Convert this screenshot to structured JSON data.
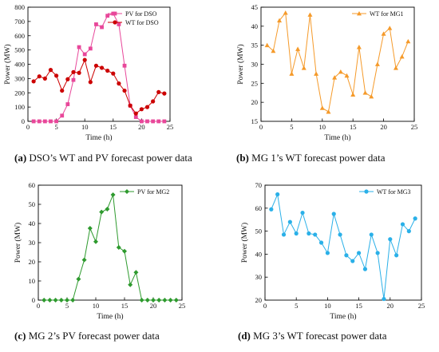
{
  "captions": [
    {
      "letter": "(a)",
      "text": " DSO’s WT and PV forecast power data"
    },
    {
      "letter": "(b)",
      "text": " MG 1’s WT forecast power data"
    },
    {
      "letter": "(c)",
      "text": " MG 2’s PV forecast power data"
    },
    {
      "letter": "(d)",
      "text": " MG 3’s WT forecast power data"
    }
  ],
  "chart_data": [
    {
      "type": "line",
      "xlabel": "Time (h)",
      "ylabel": "Power (MW)",
      "xlim": [
        0,
        25
      ],
      "ylim": [
        0,
        800
      ],
      "xticks": [
        0,
        5,
        10,
        15,
        20,
        25
      ],
      "yticks": [
        0,
        100,
        200,
        300,
        400,
        500,
        600,
        700,
        800
      ],
      "grid": false,
      "legend": "top-right",
      "series": [
        {
          "name": "PV for DSO",
          "color": "#e8479a",
          "marker": "square",
          "x": [
            1,
            2,
            3,
            4,
            5,
            6,
            7,
            8,
            9,
            10,
            11,
            12,
            13,
            14,
            15,
            16,
            17,
            18,
            19,
            20,
            21,
            22,
            23,
            24
          ],
          "values": [
            0,
            0,
            0,
            0,
            0,
            40,
            120,
            290,
            520,
            470,
            510,
            680,
            660,
            740,
            755,
            680,
            390,
            110,
            30,
            0,
            0,
            0,
            0,
            0
          ]
        },
        {
          "name": "WT for DSO",
          "color": "#cc0000",
          "marker": "circle",
          "x": [
            1,
            2,
            3,
            4,
            5,
            6,
            7,
            8,
            9,
            10,
            11,
            12,
            13,
            14,
            15,
            16,
            17,
            18,
            19,
            20,
            21,
            22,
            23,
            24
          ],
          "values": [
            280,
            315,
            300,
            360,
            320,
            215,
            295,
            345,
            340,
            430,
            275,
            390,
            375,
            355,
            335,
            265,
            215,
            110,
            55,
            85,
            100,
            140,
            205,
            195
          ]
        }
      ]
    },
    {
      "type": "line",
      "xlabel": "Time (h)",
      "ylabel": "Power (MW)",
      "xlim": [
        0,
        25
      ],
      "ylim": [
        15,
        45
      ],
      "xticks": [
        0,
        5,
        10,
        15,
        20,
        25
      ],
      "yticks": [
        15,
        20,
        25,
        30,
        35,
        40,
        45
      ],
      "grid": false,
      "legend": "top-right",
      "series": [
        {
          "name": "WT for MG1",
          "color": "#f59a2a",
          "marker": "triangle",
          "x": [
            1,
            2,
            3,
            4,
            5,
            6,
            7,
            8,
            9,
            10,
            11,
            12,
            13,
            14,
            15,
            16,
            17,
            18,
            19,
            20,
            21,
            22,
            23,
            24
          ],
          "values": [
            35,
            33.5,
            41.5,
            43.5,
            27.5,
            34,
            29,
            43,
            27.5,
            18.5,
            17.5,
            26.5,
            28,
            27,
            22,
            34.5,
            22.5,
            21.5,
            30,
            38,
            39.5,
            29,
            32,
            36
          ]
        }
      ]
    },
    {
      "type": "line",
      "xlabel": "Time (h)",
      "ylabel": "Power (MW)",
      "xlim": [
        0,
        25
      ],
      "ylim": [
        0,
        60
      ],
      "xticks": [
        0,
        5,
        10,
        15,
        20,
        25
      ],
      "yticks": [
        0,
        10,
        20,
        30,
        40,
        50,
        60
      ],
      "grid": false,
      "legend": "top-right",
      "series": [
        {
          "name": "PV for MG2",
          "color": "#2e9a2e",
          "marker": "diamond",
          "x": [
            1,
            2,
            3,
            4,
            5,
            6,
            7,
            8,
            9,
            10,
            11,
            12,
            13,
            14,
            15,
            16,
            17,
            18,
            19,
            20,
            21,
            22,
            23,
            24
          ],
          "values": [
            0,
            0,
            0,
            0,
            0,
            0,
            11,
            21,
            37.5,
            30.5,
            46,
            47.5,
            55,
            27.5,
            25.5,
            8,
            14.5,
            0,
            0,
            0,
            0,
            0,
            0,
            0
          ]
        }
      ]
    },
    {
      "type": "line",
      "xlabel": "Time (h)",
      "ylabel": "Power (MW)",
      "xlim": [
        0,
        25
      ],
      "ylim": [
        20,
        70
      ],
      "xticks": [
        0,
        5,
        10,
        15,
        20,
        25
      ],
      "yticks": [
        20,
        30,
        40,
        50,
        60,
        70
      ],
      "grid": false,
      "legend": "top-right",
      "series": [
        {
          "name": "WT for MG3",
          "color": "#2ab0e8",
          "marker": "circle",
          "x": [
            1,
            2,
            3,
            4,
            5,
            6,
            7,
            8,
            9,
            10,
            11,
            12,
            13,
            14,
            15,
            16,
            17,
            18,
            19,
            20,
            21,
            22,
            23,
            24
          ],
          "values": [
            59.5,
            66,
            48.5,
            54,
            49,
            58,
            49,
            48.5,
            45,
            40.5,
            57.5,
            48.5,
            39.5,
            37,
            40.5,
            33.5,
            48.5,
            40.5,
            20.5,
            46.5,
            39.5,
            53,
            50,
            55.5
          ]
        }
      ]
    }
  ]
}
